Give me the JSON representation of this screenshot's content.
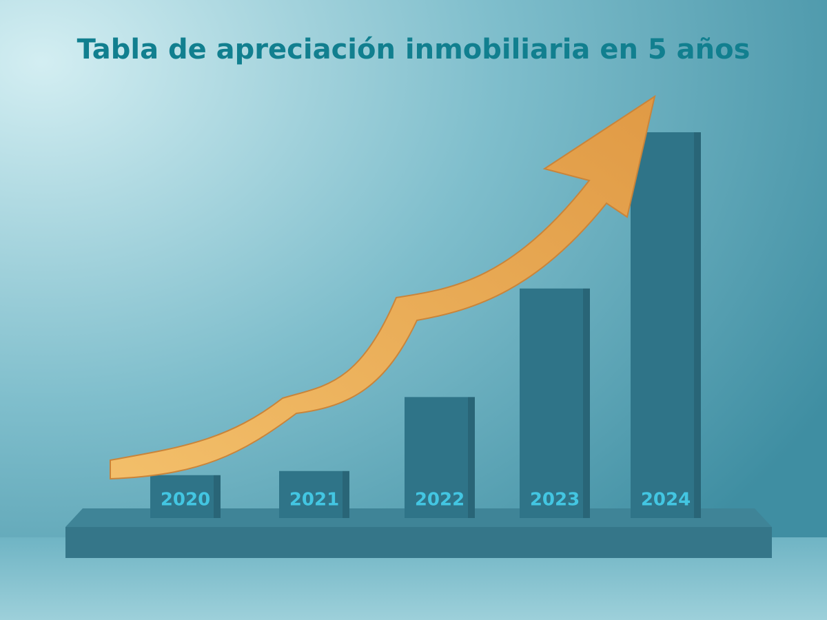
{
  "chart_data": {
    "type": "bar",
    "title": "Tabla de apreciación inmobiliaria en 5 años",
    "categories": [
      "2020",
      "2021",
      "2022",
      "2023",
      "2024"
    ],
    "values": [
      62,
      68,
      175,
      332,
      558
    ],
    "color": "#2f7488"
  }
}
